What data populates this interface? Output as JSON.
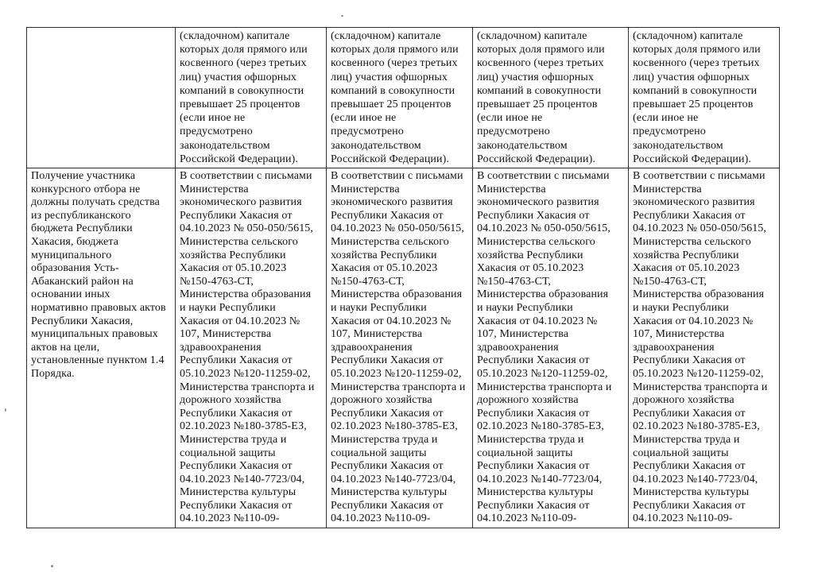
{
  "table": {
    "rows": [
      {
        "cells": [
          {
            "text": ""
          },
          {
            "text": "(складочном) капитале\nкоторых доля прямого или\nкосвенного (через третьих\nлиц) участия офшорных\nкомпаний в совокупности\nпревышает 25 процентов\n(если иное не\nпредусмотрено\nзаконодательством\nРоссийской Федерации)."
          },
          {
            "text": "(складочном) капитале\nкоторых доля прямого или\nкосвенного (через третьих\nлиц) участия офшорных\nкомпаний в совокупности\nпревышает 25 процентов\n(если иное не\nпредусмотрено\nзаконодательством\nРоссийской Федерации)."
          },
          {
            "text": "(складочном) капитале\nкоторых доля прямого или\nкосвенного (через третьих\nлиц) участия офшорных\nкомпаний в совокупности\nпревышает 25 процентов\n(если иное не\nпредусмотрено\nзаконодательством\nРоссийской Федерации)."
          },
          {
            "text": "(складочном) капитале\nкоторых доля прямого или\nкосвенного (через третьих\nлиц) участия офшорных\nкомпаний в совокупности\nпревышает 25 процентов\n(если иное не\nпредусмотрено\nзаконодательством\nРоссийской Федерации)."
          }
        ]
      },
      {
        "cells": [
          {
            "text": "Получение участника\nконкурсного отбора не\nдолжны получать средства\nиз республиканского\nбюджета Республики\nХакасия, бюджета\nмуниципального\nобразования Усть-\nАбаканский район на\nосновании иных\nнормативно правовых актов\nРеспублики Хакасия,\nмуниципальных правовых\nактов на цели,\nустановленные пунктом 1.4\nПорядка."
          },
          {
            "text": "В соответствии с письмами\nМинистерства\nэкономического развития\nРеспублики Хакасия от\n04.10.2023 № 050-050/5615,\nМинистерства сельского\nхозяйства Республики\nХакасия от 05.10.2023\n№150-4763-СТ,\nМинистерства образования\nи науки Республики\nХакасия от 04.10.2023 №\n107, Министерства\nздравоохранения\nРеспублики Хакасия от\n05.10.2023 №120-11259-02,\nМинистерства транспорта и\nдорожного хозяйства\nРеспублики Хакасия от\n02.10.2023 №180-3785-ЕЗ,\nМинистерства труда и\nсоциальной защиты\nРеспублики Хакасия от\n04.10.2023 №140-7723/04,\nМинистерства культуры\nРеспублики Хакасия от\n04.10.2023 №110-09-"
          },
          {
            "text": "В соответствии с письмами\nМинистерства\nэкономического развития\nРеспублики Хакасия от\n04.10.2023 № 050-050/5615,\nМинистерства сельского\nхозяйства Республики\nХакасия от 05.10.2023\n№150-4763-СТ,\nМинистерства образования\nи науки Республики\nХакасия от 04.10.2023 №\n107, Министерства\nздравоохранения\nРеспублики Хакасия от\n05.10.2023 №120-11259-02,\nМинистерства транспорта и\nдорожного хозяйства\nРеспублики Хакасия от\n02.10.2023 №180-3785-ЕЗ,\nМинистерства труда и\nсоциальной защиты\nРеспублики Хакасия от\n04.10.2023 №140-7723/04,\nМинистерства культуры\nРеспублики Хакасия от\n04.10.2023 №110-09-"
          },
          {
            "text": "В соответствии с письмами\nМинистерства\nэкономического развития\nРеспублики Хакасия от\n04.10.2023 № 050-050/5615,\nМинистерства сельского\nхозяйства Республики\nХакасия от 05.10.2023\n№150-4763-СТ,\nМинистерства образования\nи науки Республики\nХакасия от 04.10.2023 №\n107, Министерства\nздравоохранения\nРеспублики Хакасия от\n05.10.2023 №120-11259-02,\nМинистерства транспорта и\nдорожного хозяйства\nРеспублики Хакасия от\n02.10.2023 №180-3785-ЕЗ,\nМинистерства труда и\nсоциальной защиты\nРеспублики Хакасия от\n04.10.2023 №140-7723/04,\nМинистерства культуры\nРеспублики Хакасия от\n04.10.2023 №110-09-"
          },
          {
            "text": "В соответствии с письмами\nМинистерства\nэкономического развития\nРеспублики Хакасия от\n04.10.2023 № 050-050/5615,\nМинистерства сельского\nхозяйства Республики\nХакасия от 05.10.2023\n№150-4763-СТ,\nМинистерства образования\nи науки Республики\nХакасия от 04.10.2023 №\n107, Министерства\nздравоохранения\nРеспублики Хакасия от\n05.10.2023 №120-11259-02,\nМинистерства транспорта и\nдорожного хозяйства\nРеспублики Хакасия от\n02.10.2023 №180-3785-ЕЗ,\nМинистерства труда и\nсоциальной защиты\nРеспублики Хакасия от\n04.10.2023 №140-7723/04,\nМинистерства культуры\nРеспублики Хакасия от\n04.10.2023 №110-09-"
          }
        ]
      }
    ]
  }
}
